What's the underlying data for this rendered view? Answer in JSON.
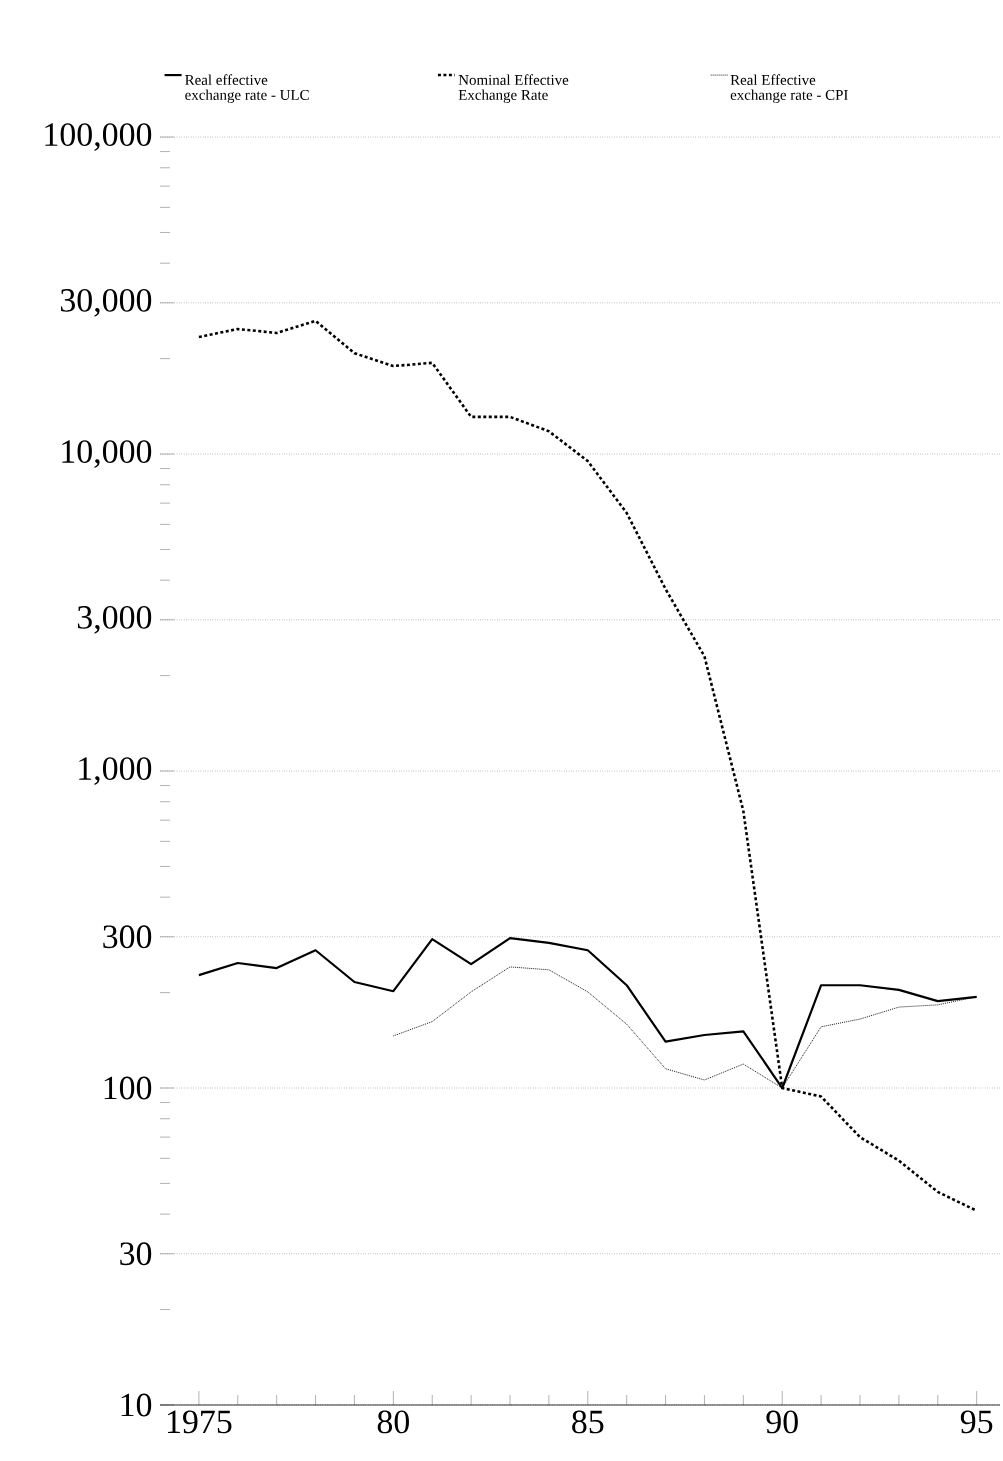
{
  "chart_data": {
    "type": "line",
    "log": "y",
    "grid": "y",
    "legend": "top",
    "x": [
      1975,
      1976,
      1977,
      1978,
      1979,
      1980,
      1981,
      1982,
      1983,
      1984,
      1985,
      1986,
      1987,
      1988,
      1989,
      1990,
      1991,
      1992,
      1993,
      1994,
      1995
    ],
    "xlim": [
      1974,
      1995.6
    ],
    "xticks": [
      {
        "value": 1975,
        "label": "1975"
      },
      {
        "value": 1976,
        "label": null
      },
      {
        "value": 1977,
        "label": null
      },
      {
        "value": 1978,
        "label": null
      },
      {
        "value": 1979,
        "label": null
      },
      {
        "value": 1980,
        "label": "80"
      },
      {
        "value": 1981,
        "label": null
      },
      {
        "value": 1982,
        "label": null
      },
      {
        "value": 1983,
        "label": null
      },
      {
        "value": 1984,
        "label": null
      },
      {
        "value": 1985,
        "label": "85"
      },
      {
        "value": 1986,
        "label": null
      },
      {
        "value": 1987,
        "label": null
      },
      {
        "value": 1988,
        "label": null
      },
      {
        "value": 1989,
        "label": null
      },
      {
        "value": 1990,
        "label": "90"
      },
      {
        "value": 1991,
        "label": null
      },
      {
        "value": 1992,
        "label": null
      },
      {
        "value": 1993,
        "label": null
      },
      {
        "value": 1994,
        "label": null
      },
      {
        "value": 1995,
        "label": "95"
      }
    ],
    "ylim": [
      10,
      100000
    ],
    "yticks": [
      10,
      {
        "value": 20,
        "label": null
      },
      30,
      {
        "value": 40,
        "label": null
      },
      {
        "value": 50,
        "label": null
      },
      {
        "value": 60,
        "label": null
      },
      {
        "value": 70,
        "label": null
      },
      {
        "value": 80,
        "label": null
      },
      {
        "value": 90,
        "label": null
      },
      100,
      {
        "value": 200,
        "label": null
      },
      300,
      {
        "value": 400,
        "label": null
      },
      {
        "value": 500,
        "label": null
      },
      {
        "value": 600,
        "label": null
      },
      {
        "value": 700,
        "label": null
      },
      {
        "value": 800,
        "label": null
      },
      {
        "value": 900,
        "label": null
      },
      {
        "value": 1000,
        "label": "1,000"
      },
      {
        "value": 2000,
        "label": null
      },
      {
        "value": 3000,
        "label": "3,000"
      },
      {
        "value": 4000,
        "label": null
      },
      {
        "value": 5000,
        "label": null
      },
      {
        "value": 6000,
        "label": null
      },
      {
        "value": 7000,
        "label": null
      },
      {
        "value": 8000,
        "label": null
      },
      {
        "value": 9000,
        "label": null
      },
      {
        "value": 10000,
        "label": "10,000"
      },
      {
        "value": 20000,
        "label": null
      },
      {
        "value": 30000,
        "label": "30,000"
      },
      {
        "value": 40000,
        "label": null
      },
      {
        "value": 50000,
        "label": null
      },
      {
        "value": 60000,
        "label": null
      },
      {
        "value": 70000,
        "label": null
      },
      {
        "value": 80000,
        "label": null
      },
      {
        "value": 90000,
        "label": null
      },
      {
        "value": 100000,
        "label": "100,000"
      }
    ],
    "series": [
      {
        "name": "Real effective exchange rate - ULC",
        "color": "#000000",
        "line_style": "solid",
        "values": [
          227,
          248,
          239,
          272,
          216,
          202,
          295,
          246,
          297,
          287,
          272,
          211,
          140,
          147,
          151,
          100,
          211,
          211,
          204,
          188,
          194
        ]
      },
      {
        "name": "Nominal Effective Exchange Rate",
        "color": "#000000",
        "line_style": "dashed",
        "values": [
          23400,
          24800,
          24100,
          26300,
          20800,
          18950,
          19400,
          13100,
          13100,
          11800,
          9500,
          6520,
          3750,
          2300,
          748,
          100,
          94,
          70,
          59,
          47,
          41
        ]
      },
      {
        "name": "Real Effective exchange rate - CPI",
        "color": "#000000",
        "line_style": "dotted",
        "values": [
          null,
          null,
          null,
          null,
          null,
          146,
          162,
          201,
          241,
          236,
          201,
          159,
          115,
          106,
          119,
          100,
          156,
          165,
          180,
          183,
          194
        ]
      }
    ]
  }
}
